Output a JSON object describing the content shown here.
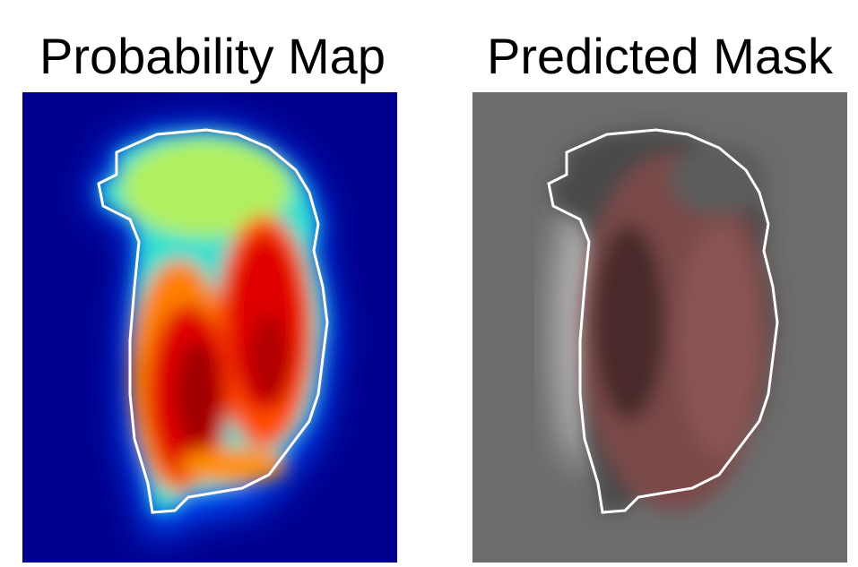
{
  "panels": [
    {
      "title": "Probability Map"
    },
    {
      "title": "Predicted Mask"
    }
  ]
}
